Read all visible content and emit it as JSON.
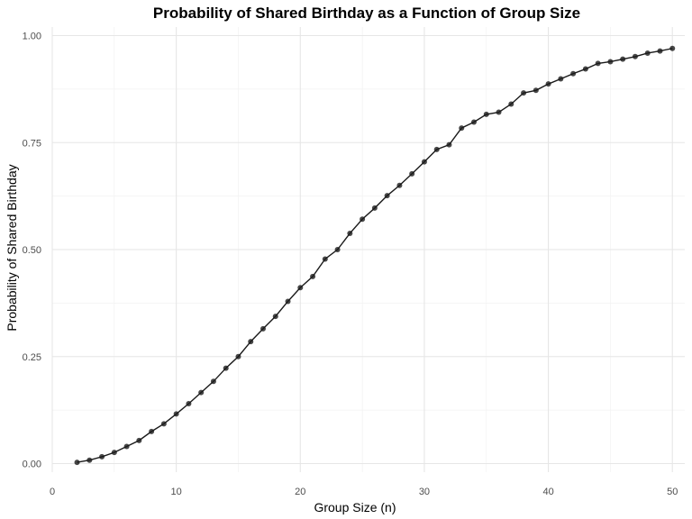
{
  "chart_data": {
    "type": "line",
    "title": "Probability of Shared Birthday as a Function of Group Size",
    "xlabel": "Group Size (n)",
    "ylabel": "Probability of Shared Birthday",
    "xlim": [
      0,
      51
    ],
    "ylim": [
      -0.02,
      1.02
    ],
    "x_ticks": [
      0,
      10,
      20,
      30,
      40,
      50
    ],
    "y_ticks": [
      0.0,
      0.25,
      0.5,
      0.75,
      1.0
    ],
    "x_tick_labels": [
      "0",
      "10",
      "20",
      "30",
      "40",
      "50"
    ],
    "y_tick_labels": [
      "0.00",
      "0.25",
      "0.50",
      "0.75",
      "1.00"
    ],
    "grid": true,
    "series": [
      {
        "color": "#1a1a1a",
        "marker": "circle",
        "x": [
          2,
          3,
          4,
          5,
          6,
          7,
          8,
          9,
          10,
          11,
          12,
          13,
          14,
          15,
          16,
          17,
          18,
          19,
          20,
          21,
          22,
          23,
          24,
          25,
          26,
          27,
          28,
          29,
          30,
          31,
          32,
          33,
          34,
          35,
          36,
          37,
          38,
          39,
          40,
          41,
          42,
          43,
          44,
          45,
          46,
          47,
          48,
          49,
          50
        ],
        "y": [
          0.003,
          0.008,
          0.016,
          0.026,
          0.04,
          0.054,
          0.075,
          0.093,
          0.116,
          0.14,
          0.166,
          0.192,
          0.223,
          0.25,
          0.285,
          0.315,
          0.344,
          0.379,
          0.411,
          0.437,
          0.478,
          0.5,
          0.538,
          0.571,
          0.597,
          0.626,
          0.65,
          0.677,
          0.705,
          0.734,
          0.745,
          0.784,
          0.798,
          0.816,
          0.821,
          0.84,
          0.866,
          0.872,
          0.887,
          0.899,
          0.911,
          0.922,
          0.935,
          0.939,
          0.945,
          0.951,
          0.959,
          0.964,
          0.97
        ]
      }
    ]
  }
}
